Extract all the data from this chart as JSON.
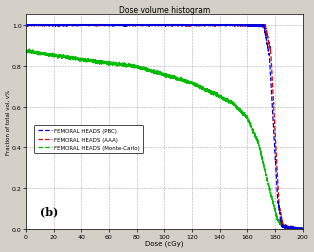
{
  "title": "Dose volume histogram",
  "xlabel": "Dose (cGy)",
  "ylabel": "Fraction of total vol, v%",
  "xlim": [
    0,
    200
  ],
  "ylim": [
    0,
    1.05
  ],
  "xticks": [
    0,
    20,
    40,
    60,
    80,
    100,
    120,
    140,
    160,
    180,
    200
  ],
  "yticks": [
    0,
    0.2,
    0.4,
    0.6,
    0.8,
    1.0
  ],
  "legend": [
    {
      "label": "FEMORAL HEADS (PBC)",
      "color": "#0000dd"
    },
    {
      "label": "FEMORAL HEADS (AAA)",
      "color": "#dd0000"
    },
    {
      "label": "FEMORAL HEADS (Monte-Carlo)",
      "color": "#00bb00"
    }
  ],
  "annotation": "(b)",
  "bg_color": "#d4d0c8",
  "plot_bg_color": "#ffffff",
  "grid_color": "#888888"
}
